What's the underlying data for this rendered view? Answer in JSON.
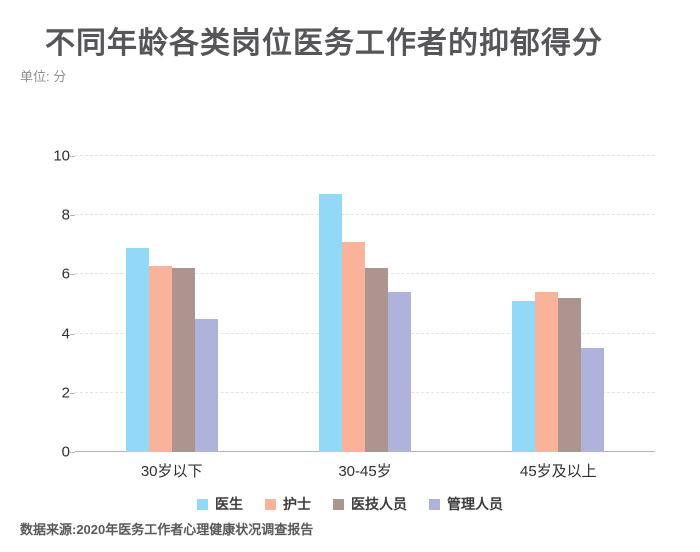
{
  "chart": {
    "title": "不同年龄各类岗位医务工作者的抑郁得分",
    "unit_label": "单位: 分",
    "source": "数据来源:2020年医务工作者心理健康状况调查报告"
  },
  "chart_data": {
    "type": "bar",
    "title": "不同年龄各类岗位医务工作者的抑郁得分",
    "unit": "分",
    "categories": [
      "30岁以下",
      "30-45岁",
      "45岁及以上"
    ],
    "series": [
      {
        "name": "医生",
        "color": "#92D8F7",
        "values": [
          6.9,
          8.7,
          5.1
        ]
      },
      {
        "name": "护士",
        "color": "#FBB29B",
        "values": [
          6.3,
          7.1,
          5.4
        ]
      },
      {
        "name": "医技人员",
        "color": "#AC958F",
        "values": [
          6.2,
          6.2,
          5.2
        ]
      },
      {
        "name": "管理人员",
        "color": "#AFB3DB",
        "values": [
          4.5,
          5.4,
          3.5
        ]
      }
    ],
    "ylim": [
      0,
      10
    ],
    "yticks": [
      0,
      2,
      4,
      6,
      8,
      10
    ],
    "grid": true,
    "gridline_style": "dashed",
    "legend_position": "bottom",
    "axis_color": "#b3b3b3",
    "source": "数据来源:2020年医务工作者心理健康状况调查报告"
  }
}
